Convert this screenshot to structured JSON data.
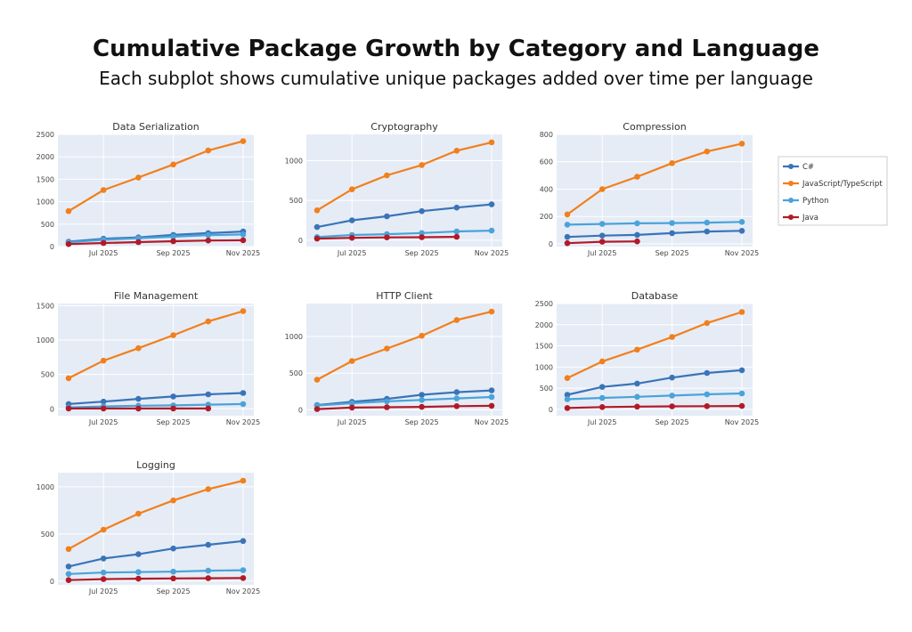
{
  "title": "Cumulative Package Growth by Category and Language",
  "subtitle": "Each subplot shows cumulative unique packages added over time per language",
  "colors": {
    "C#": "#3a74b8",
    "JavaScript/TypeScript": "#f27f1b",
    "Python": "#4aa3d9",
    "Java": "#b21a28",
    "plot_bg": "#e5ecf6",
    "grid": "#ffffff"
  },
  "legend": [
    "C#",
    "JavaScript/TypeScript",
    "Python",
    "Java"
  ],
  "chart_data": [
    {
      "type": "line",
      "title": "Data Serialization",
      "x": [
        "Jun 2025",
        "Jul 2025",
        "Aug 2025",
        "Sep 2025",
        "Oct 2025",
        "Nov 2025"
      ],
      "xticks": [
        "Jul 2025",
        "Sep 2025",
        "Nov 2025"
      ],
      "ylim": [
        0,
        2500
      ],
      "yticks": [
        0,
        500,
        1000,
        1500,
        2000,
        2500
      ],
      "series": [
        {
          "name": "C#",
          "values": [
            110,
            175,
            205,
            260,
            300,
            335
          ]
        },
        {
          "name": "JavaScript/TypeScript",
          "values": [
            790,
            1260,
            1540,
            1830,
            2140,
            2350
          ]
        },
        {
          "name": "Python",
          "values": [
            95,
            150,
            185,
            220,
            255,
            270
          ]
        },
        {
          "name": "Java",
          "values": [
            55,
            80,
            100,
            120,
            135,
            140
          ]
        }
      ]
    },
    {
      "type": "line",
      "title": "Cryptography",
      "x": [
        "Jun 2025",
        "Jul 2025",
        "Aug 2025",
        "Sep 2025",
        "Oct 2025",
        "Nov 2025"
      ],
      "xticks": [
        "Jul 2025",
        "Sep 2025",
        "Nov 2025"
      ],
      "ylim": [
        -80,
        1330
      ],
      "yticks": [
        0,
        500,
        1000
      ],
      "series": [
        {
          "name": "C#",
          "values": [
            165,
            250,
            300,
            365,
            410,
            450
          ]
        },
        {
          "name": "JavaScript/TypeScript",
          "values": [
            375,
            640,
            815,
            945,
            1125,
            1230
          ]
        },
        {
          "name": "Python",
          "values": [
            40,
            65,
            75,
            90,
            110,
            120
          ]
        },
        {
          "name": "Java",
          "values": [
            20,
            30,
            35,
            38,
            42,
            null
          ]
        }
      ]
    },
    {
      "type": "line",
      "title": "Compression",
      "x": [
        "Jun 2025",
        "Jul 2025",
        "Aug 2025",
        "Sep 2025",
        "Oct 2025",
        "Nov 2025"
      ],
      "xticks": [
        "Jul 2025",
        "Sep 2025",
        "Nov 2025"
      ],
      "ylim": [
        -20,
        800
      ],
      "yticks": [
        0,
        200,
        400,
        600,
        800
      ],
      "series": [
        {
          "name": "C#",
          "values": [
            50,
            60,
            65,
            78,
            90,
            95
          ]
        },
        {
          "name": "JavaScript/TypeScript",
          "values": [
            215,
            400,
            490,
            590,
            675,
            732
          ]
        },
        {
          "name": "Python",
          "values": [
            140,
            145,
            150,
            152,
            155,
            160
          ]
        },
        {
          "name": "Java",
          "values": [
            5,
            15,
            18,
            null,
            null,
            null
          ]
        }
      ]
    },
    {
      "type": "line",
      "title": "File Management",
      "x": [
        "Jun 2025",
        "Jul 2025",
        "Aug 2025",
        "Sep 2025",
        "Oct 2025",
        "Nov 2025"
      ],
      "xticks": [
        "Jul 2025",
        "Sep 2025",
        "Nov 2025"
      ],
      "ylim": [
        -100,
        1530
      ],
      "yticks": [
        0,
        500,
        1000,
        1500
      ],
      "series": [
        {
          "name": "C#",
          "values": [
            70,
            105,
            145,
            180,
            210,
            230
          ]
        },
        {
          "name": "JavaScript/TypeScript",
          "values": [
            445,
            700,
            880,
            1070,
            1270,
            1420
          ]
        },
        {
          "name": "Python",
          "values": [
            20,
            35,
            45,
            50,
            60,
            70
          ]
        },
        {
          "name": "Java",
          "values": [
            5,
            5,
            5,
            5,
            5,
            null
          ]
        }
      ]
    },
    {
      "type": "line",
      "title": "HTTP Client",
      "x": [
        "Jun 2025",
        "Jul 2025",
        "Aug 2025",
        "Sep 2025",
        "Oct 2025",
        "Nov 2025"
      ],
      "xticks": [
        "Jul 2025",
        "Sep 2025",
        "Nov 2025"
      ],
      "ylim": [
        -80,
        1450
      ],
      "yticks": [
        0,
        500,
        1000
      ],
      "series": [
        {
          "name": "C#",
          "values": [
            65,
            110,
            150,
            205,
            240,
            265
          ]
        },
        {
          "name": "JavaScript/TypeScript",
          "values": [
            410,
            665,
            835,
            1010,
            1225,
            1340
          ]
        },
        {
          "name": "Python",
          "values": [
            60,
            90,
            115,
            135,
            155,
            175
          ]
        },
        {
          "name": "Java",
          "values": [
            10,
            30,
            35,
            40,
            50,
            55
          ]
        }
      ]
    },
    {
      "type": "line",
      "title": "Database",
      "x": [
        "Jun 2025",
        "Jul 2025",
        "Aug 2025",
        "Sep 2025",
        "Oct 2025",
        "Nov 2025"
      ],
      "xticks": [
        "Jul 2025",
        "Sep 2025",
        "Nov 2025"
      ],
      "ylim": [
        -150,
        2500
      ],
      "yticks": [
        0,
        500,
        1000,
        1500,
        2000,
        2500
      ],
      "series": [
        {
          "name": "C#",
          "values": [
            345,
            530,
            610,
            750,
            860,
            925
          ]
        },
        {
          "name": "JavaScript/TypeScript",
          "values": [
            740,
            1130,
            1410,
            1710,
            2040,
            2300
          ]
        },
        {
          "name": "Python",
          "values": [
            240,
            270,
            295,
            325,
            355,
            375
          ]
        },
        {
          "name": "Java",
          "values": [
            30,
            55,
            65,
            70,
            75,
            80
          ]
        }
      ]
    },
    {
      "type": "line",
      "title": "Logging",
      "x": [
        "Jun 2025",
        "Jul 2025",
        "Aug 2025",
        "Sep 2025",
        "Oct 2025",
        "Nov 2025"
      ],
      "xticks": [
        "Jul 2025",
        "Sep 2025",
        "Nov 2025"
      ],
      "ylim": [
        -40,
        1150
      ],
      "yticks": [
        0,
        500,
        1000
      ],
      "series": [
        {
          "name": "C#",
          "values": [
            155,
            240,
            285,
            345,
            385,
            425
          ]
        },
        {
          "name": "JavaScript/TypeScript",
          "values": [
            340,
            545,
            715,
            855,
            975,
            1065
          ]
        },
        {
          "name": "Python",
          "values": [
            75,
            90,
            95,
            100,
            110,
            115
          ]
        },
        {
          "name": "Java",
          "values": [
            10,
            20,
            25,
            28,
            30,
            32
          ]
        }
      ]
    }
  ]
}
